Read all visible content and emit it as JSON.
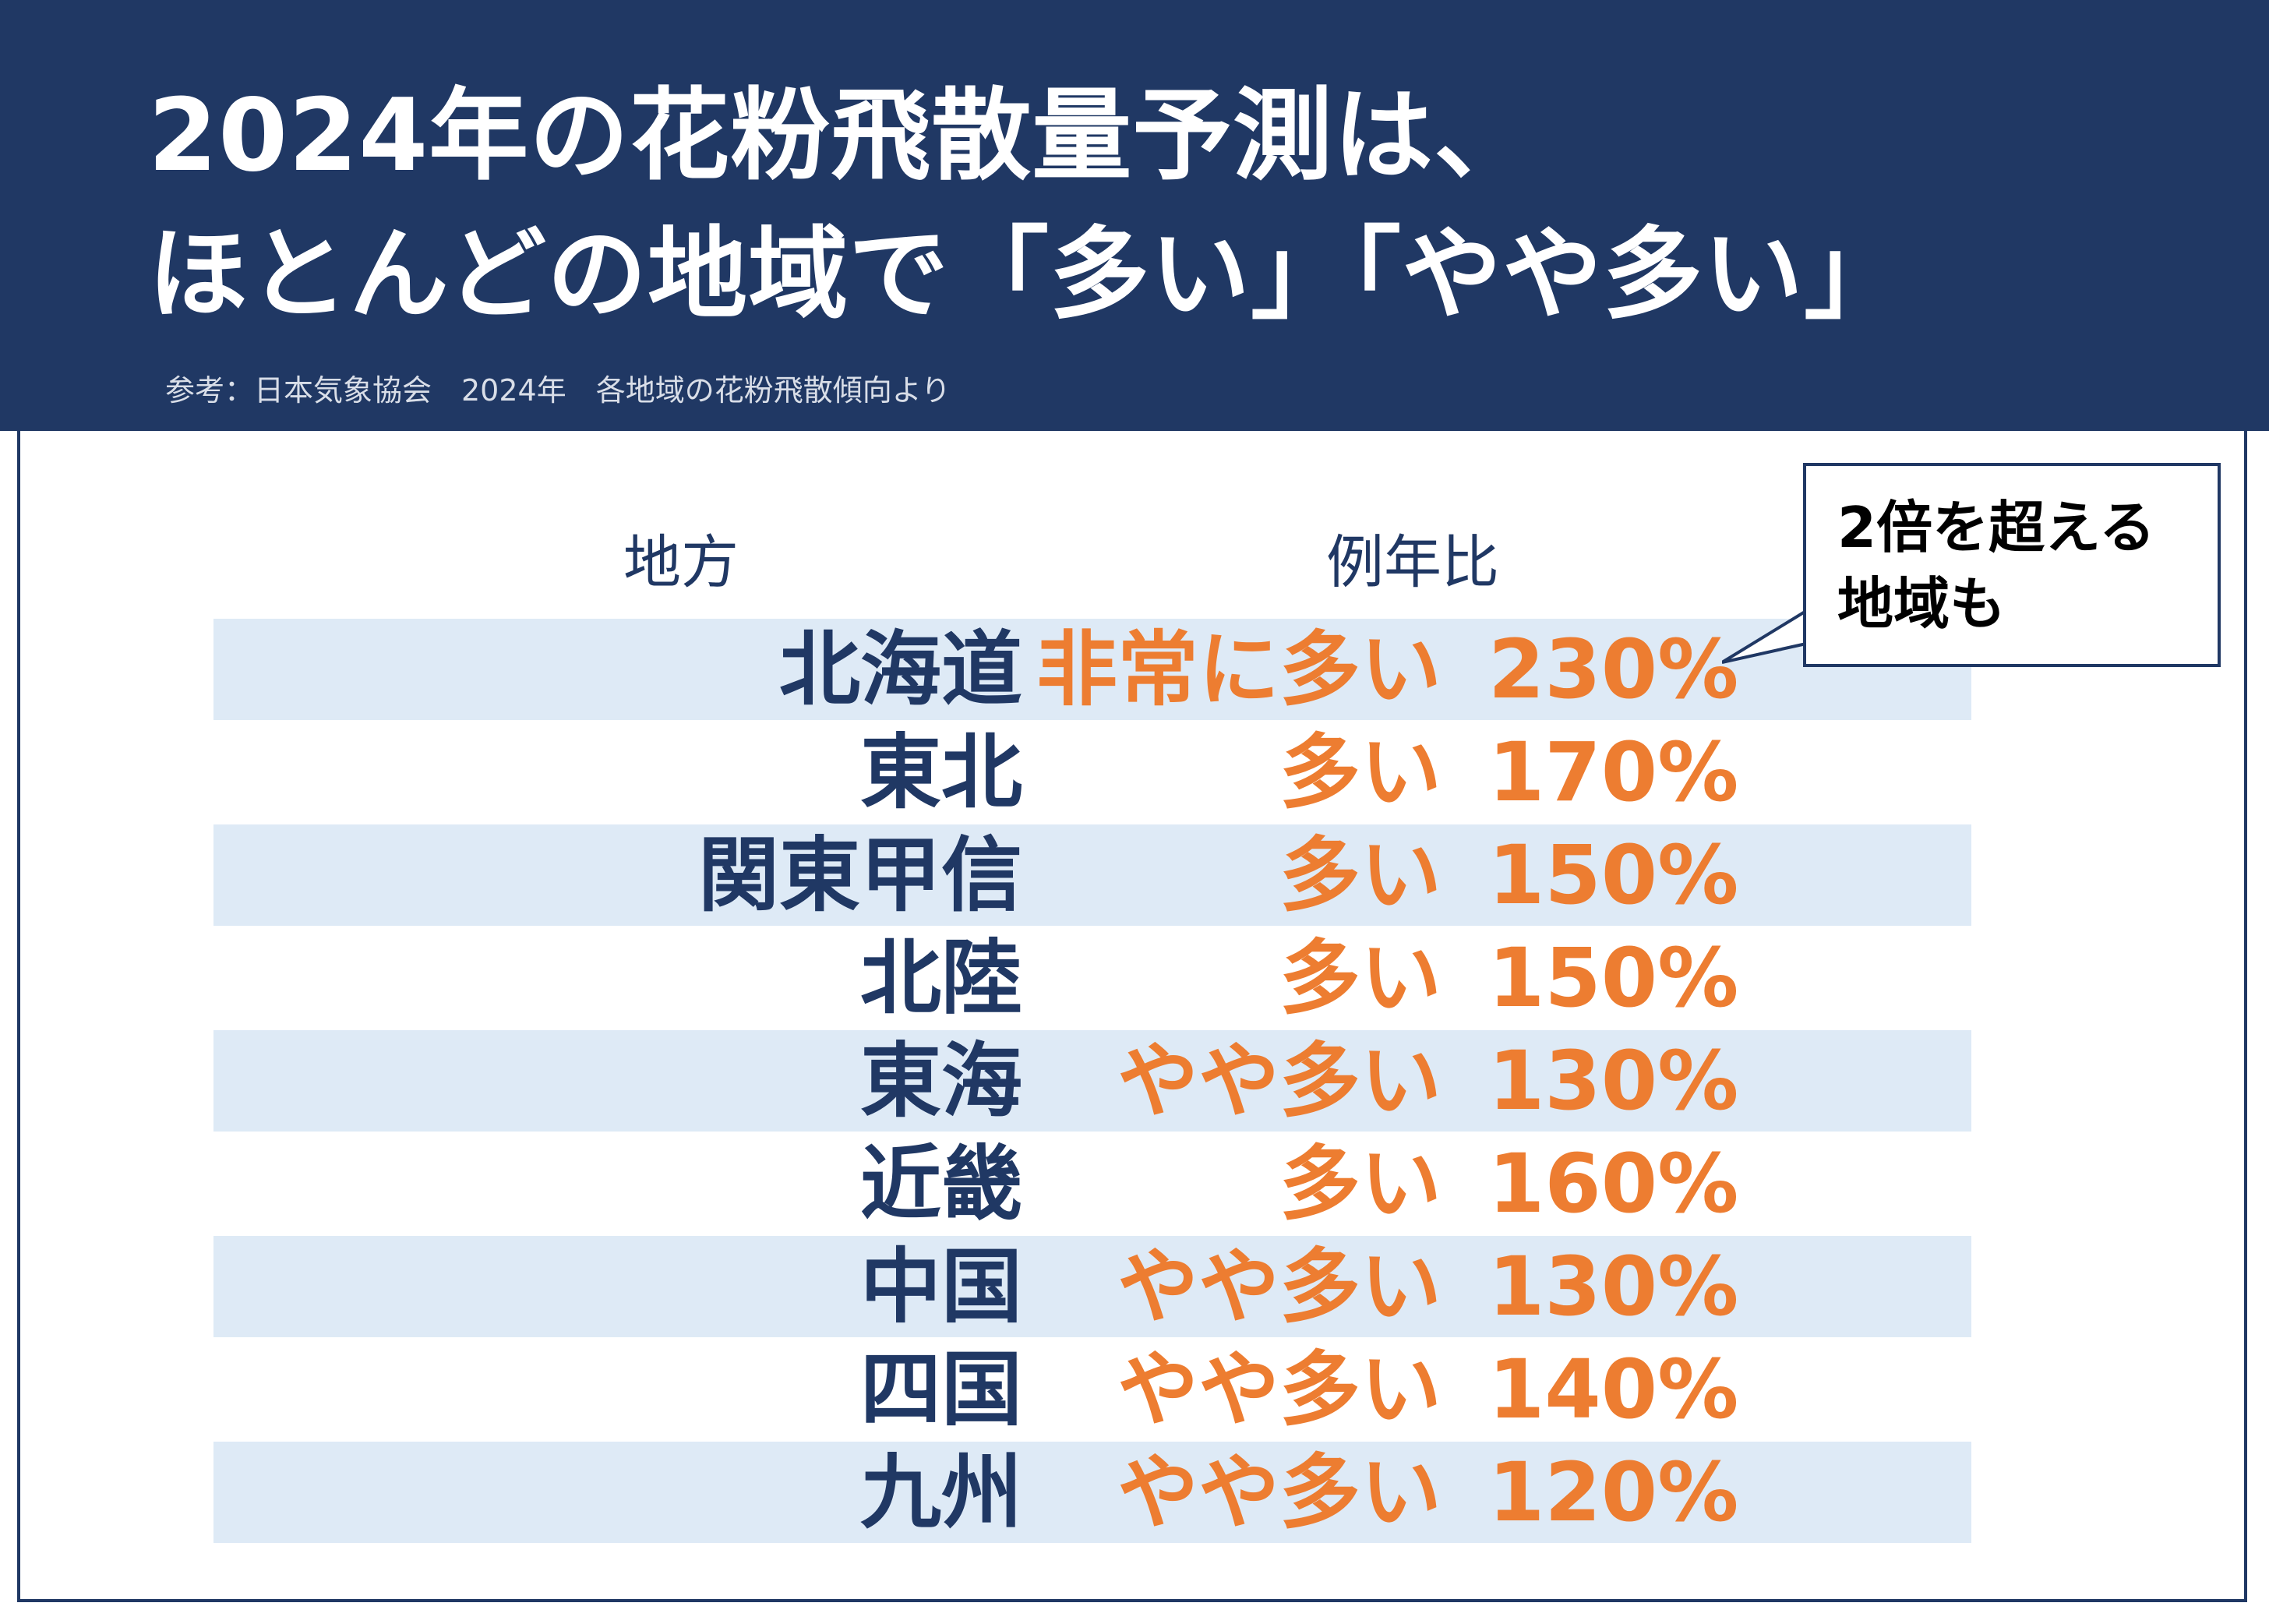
{
  "header": {
    "title_line1": "2024年の花粉飛散量予測は、",
    "title_line2": "ほとんどの地域で「多い」「やや多い」",
    "source": "参考：日本気象協会　2024年　各地域の花粉飛散傾向より"
  },
  "columns": {
    "region": "地方",
    "ratio": "例年比"
  },
  "rows": [
    {
      "region": "北海道",
      "level": "非常に多い",
      "percent": "230%"
    },
    {
      "region": "東北",
      "level": "多い",
      "percent": "170%"
    },
    {
      "region": "関東甲信",
      "level": "多い",
      "percent": "150%"
    },
    {
      "region": "北陸",
      "level": "多い",
      "percent": "150%"
    },
    {
      "region": "東海",
      "level": "やや多い",
      "percent": "130%"
    },
    {
      "region": "近畿",
      "level": "多い",
      "percent": "160%"
    },
    {
      "region": "中国",
      "level": "やや多い",
      "percent": "130%"
    },
    {
      "region": "四国",
      "level": "やや多い",
      "percent": "140%"
    },
    {
      "region": "九州",
      "level": "やや多い",
      "percent": "120%"
    }
  ],
  "callout": {
    "line1": "2倍を超える",
    "line2": "地域も"
  },
  "colors": {
    "navy": "#203864",
    "orange": "#ed7d31",
    "row_shade": "#deeaf6",
    "background": "#ffffff"
  },
  "chart_data": {
    "type": "table",
    "title": "2024年の花粉飛散量予測は、ほとんどの地域で「多い」「やや多い」",
    "columns": [
      "地方",
      "例年比",
      "例年比"
    ],
    "rows": [
      [
        "北海道",
        "非常に多い",
        "230%"
      ],
      [
        "東北",
        "多い",
        "170%"
      ],
      [
        "関東甲信",
        "多い",
        "150%"
      ],
      [
        "北陸",
        "多い",
        "150%"
      ],
      [
        "東海",
        "やや多い",
        "130%"
      ],
      [
        "近畿",
        "多い",
        "160%"
      ],
      [
        "中国",
        "やや多い",
        "130%"
      ],
      [
        "四国",
        "やや多い",
        "140%"
      ],
      [
        "九州",
        "やや多い",
        "120%"
      ]
    ],
    "values": [
      230,
      170,
      150,
      150,
      130,
      160,
      130,
      140,
      120
    ],
    "unit": "%"
  }
}
